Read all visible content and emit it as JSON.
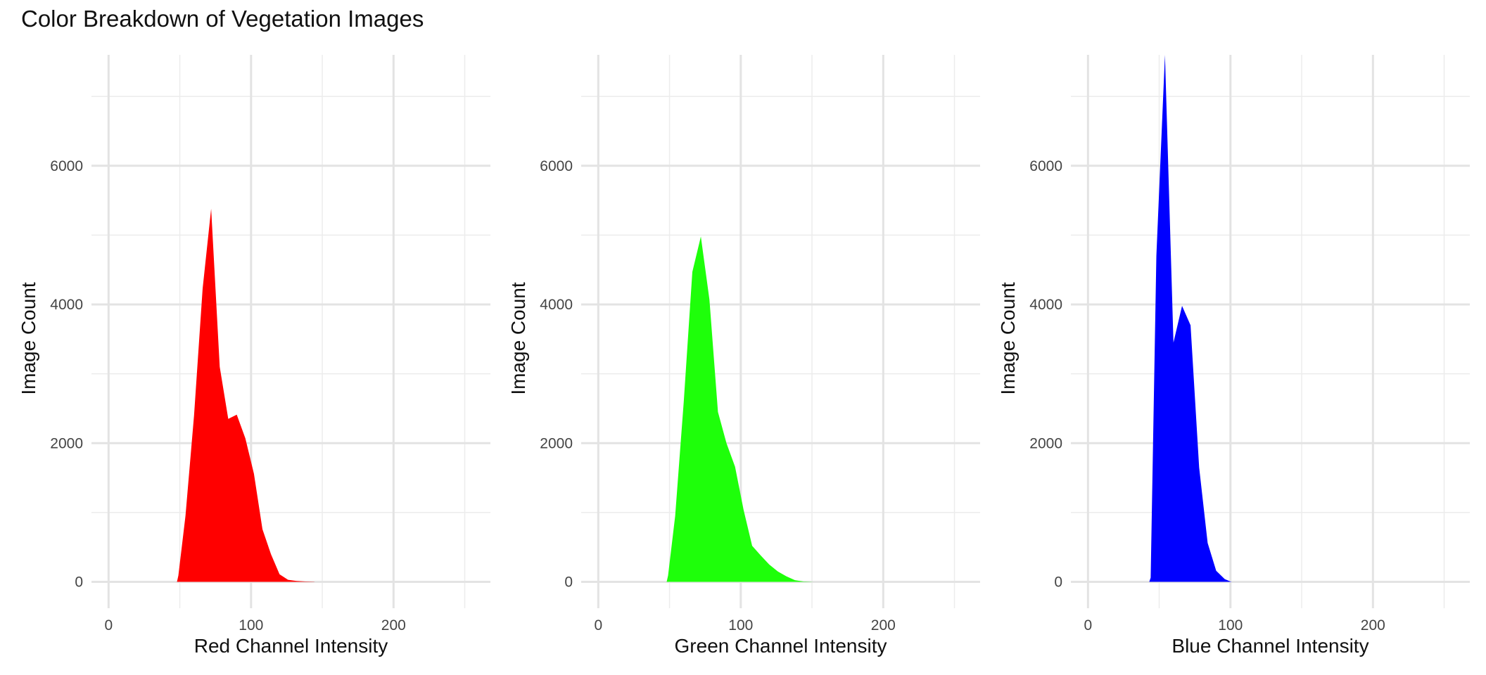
{
  "title": "Color Breakdown of Vegetation Images",
  "chart_data": [
    {
      "type": "area",
      "color": "#ff0000",
      "xlabel": "Red Channel Intensity",
      "ylabel": "Image Count",
      "xlim": [
        -12,
        268
      ],
      "ylim": [
        -380,
        7600
      ],
      "x_ticks": [
        0,
        100,
        200
      ],
      "y_ticks": [
        0,
        2000,
        4000,
        6000
      ],
      "x": [
        48,
        49,
        54,
        60,
        66,
        72,
        78,
        84,
        90,
        96,
        102,
        108,
        114,
        120,
        126,
        132,
        138,
        144,
        145
      ],
      "values": [
        0,
        90,
        950,
        2400,
        4230,
        5380,
        3100,
        2350,
        2410,
        2070,
        1560,
        760,
        400,
        110,
        30,
        12,
        5,
        2,
        0
      ]
    },
    {
      "type": "area",
      "color": "#1eff0a",
      "xlabel": "Green Channel Intensity",
      "ylabel": "Image Count",
      "xlim": [
        -12,
        268
      ],
      "ylim": [
        -380,
        7600
      ],
      "x_ticks": [
        0,
        100,
        200
      ],
      "y_ticks": [
        0,
        2000,
        4000,
        6000
      ],
      "x": [
        48,
        49,
        54,
        60,
        66,
        72,
        78,
        84,
        90,
        96,
        102,
        108,
        114,
        120,
        126,
        132,
        138,
        144,
        150,
        151
      ],
      "values": [
        0,
        90,
        950,
        2600,
        4470,
        4980,
        4070,
        2450,
        2000,
        1660,
        1040,
        520,
        380,
        250,
        150,
        80,
        25,
        5,
        1,
        0
      ]
    },
    {
      "type": "area",
      "color": "#0000ff",
      "xlabel": "Blue Channel Intensity",
      "ylabel": "Image Count",
      "xlim": [
        -12,
        268
      ],
      "ylim": [
        -380,
        7600
      ],
      "x_ticks": [
        0,
        100,
        200
      ],
      "y_ticks": [
        0,
        2000,
        4000,
        6000
      ],
      "x": [
        43,
        44,
        48,
        54,
        60,
        66,
        72,
        78,
        84,
        90,
        96,
        100,
        101
      ],
      "values": [
        0,
        60,
        4700,
        7600,
        3450,
        3980,
        3700,
        1650,
        560,
        160,
        40,
        5,
        0
      ]
    }
  ]
}
